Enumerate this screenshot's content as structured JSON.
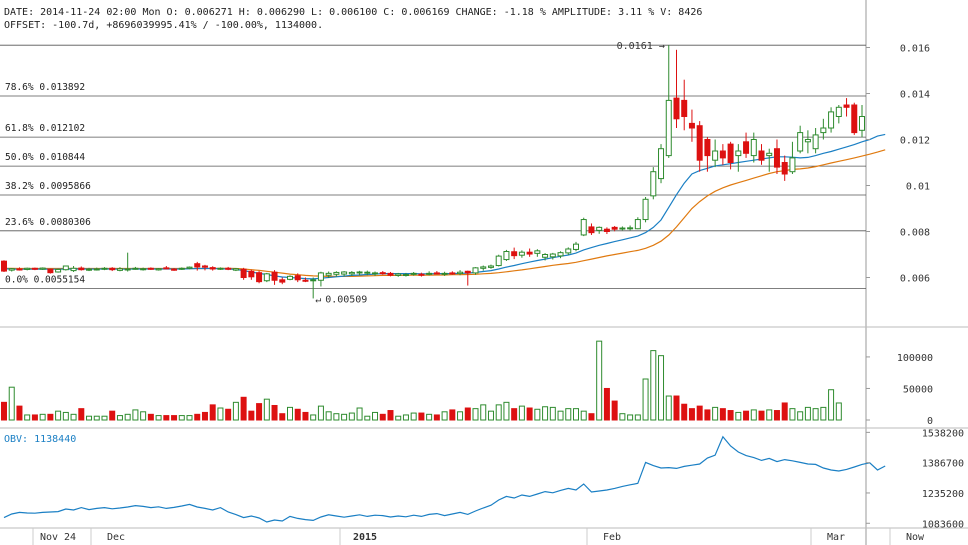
{
  "header": {
    "line1": "DATE: 2014-11-24 02:00 Mon   O: 0.006271   H: 0.006290   L: 0.006100   C: 0.006169   CHANGE: -1.18 %   AMPLITUDE: 3.11 %   V: 8426",
    "line2": "OFFSET: -100.7d, +8696039995.41% / -100.00%, 1134000."
  },
  "colors": {
    "up": "#2e8b2e",
    "down": "#dd1111",
    "ma_fast": "#1a7fc4",
    "ma_slow": "#e07a10",
    "obv": "#1a7fc4",
    "grid": "#555555"
  },
  "chart_data": [
    {
      "type": "candlestick",
      "title": "",
      "ylim": [
        0.0045,
        0.0165
      ],
      "y_ticks": [
        "0.016",
        "0.014",
        "0.012",
        "0.01",
        "0.008",
        "0.006"
      ],
      "fib_levels": [
        {
          "label": "78.6% 0.013892",
          "value": 0.013892
        },
        {
          "label": "61.8% 0.012102",
          "value": 0.012102
        },
        {
          "label": "50.0% 0.010844",
          "value": 0.010844
        },
        {
          "label": "38.2% 0.0095866",
          "value": 0.0095866
        },
        {
          "label": "23.6% 0.0080306",
          "value": 0.0080306
        },
        {
          "label": "0.0% 0.0055154",
          "value": 0.0055154
        }
      ],
      "top_line": 0.0161,
      "annotations": {
        "high": "0.0161",
        "low": "0.00509"
      },
      "x_labels": [
        "Nov 24",
        "Dec",
        "2015",
        "Feb",
        "Mar",
        "Now"
      ],
      "candles": [
        [
          0.00671,
          0.00675,
          0.00624,
          0.00628
        ],
        [
          0.00632,
          0.00641,
          0.00626,
          0.00638
        ],
        [
          0.00637,
          0.00644,
          0.0063,
          0.00633
        ],
        [
          0.00635,
          0.00643,
          0.00631,
          0.0064
        ],
        [
          0.0064,
          0.00643,
          0.00632,
          0.00636
        ],
        [
          0.00636,
          0.00644,
          0.00633,
          0.00641
        ],
        [
          0.00636,
          0.00638,
          0.00617,
          0.00621
        ],
        [
          0.00624,
          0.00638,
          0.00621,
          0.00635
        ],
        [
          0.00634,
          0.00652,
          0.0063,
          0.0065
        ],
        [
          0.0063,
          0.0065,
          0.00624,
          0.0064
        ],
        [
          0.00641,
          0.00648,
          0.0063,
          0.00634
        ],
        [
          0.00634,
          0.00642,
          0.00628,
          0.00636
        ],
        [
          0.00634,
          0.00643,
          0.0063,
          0.00637
        ],
        [
          0.00637,
          0.00645,
          0.00632,
          0.0064
        ],
        [
          0.0064,
          0.00645,
          0.00628,
          0.00634
        ],
        [
          0.00631,
          0.00645,
          0.00627,
          0.00638
        ],
        [
          0.00633,
          0.00708,
          0.00626,
          0.00637
        ],
        [
          0.00637,
          0.00646,
          0.00634,
          0.0064
        ],
        [
          0.00635,
          0.00643,
          0.0063,
          0.00638
        ],
        [
          0.0064,
          0.00644,
          0.00633,
          0.00636
        ],
        [
          0.00633,
          0.00641,
          0.0063,
          0.00638
        ],
        [
          0.00642,
          0.0065,
          0.00636,
          0.0064
        ],
        [
          0.00636,
          0.00641,
          0.00629,
          0.00634
        ],
        [
          0.00636,
          0.00644,
          0.00633,
          0.0064
        ],
        [
          0.0064,
          0.00648,
          0.00636,
          0.00645
        ],
        [
          0.0066,
          0.00668,
          0.0063,
          0.00646
        ],
        [
          0.0065,
          0.00655,
          0.00631,
          0.00645
        ],
        [
          0.00643,
          0.00649,
          0.0063,
          0.00637
        ],
        [
          0.00636,
          0.00644,
          0.00633,
          0.0064
        ],
        [
          0.0064,
          0.00646,
          0.00632,
          0.00637
        ],
        [
          0.00632,
          0.00641,
          0.00628,
          0.00638
        ],
        [
          0.00636,
          0.00642,
          0.0059,
          0.006
        ],
        [
          0.00627,
          0.00634,
          0.0059,
          0.00603
        ],
        [
          0.00621,
          0.00628,
          0.00575,
          0.00582
        ],
        [
          0.00586,
          0.0062,
          0.0058,
          0.00616
        ],
        [
          0.00623,
          0.00632,
          0.00568,
          0.00588
        ],
        [
          0.0059,
          0.006,
          0.00571,
          0.0058
        ],
        [
          0.00592,
          0.0061,
          0.00588,
          0.00605
        ],
        [
          0.00608,
          0.00618,
          0.0058,
          0.0059
        ],
        [
          0.00588,
          0.006,
          0.0058,
          0.00587
        ],
        [
          0.00586,
          0.006,
          0.00509,
          0.0059
        ],
        [
          0.00588,
          0.00625,
          0.00561,
          0.0062
        ],
        [
          0.0061,
          0.00626,
          0.00598,
          0.00618
        ],
        [
          0.00614,
          0.00627,
          0.00604,
          0.00622
        ],
        [
          0.00615,
          0.00628,
          0.00605,
          0.00624
        ],
        [
          0.00616,
          0.00628,
          0.00607,
          0.00622
        ],
        [
          0.00621,
          0.00629,
          0.0061,
          0.00624
        ],
        [
          0.0062,
          0.0063,
          0.0061,
          0.00623
        ],
        [
          0.00617,
          0.00626,
          0.00607,
          0.0062
        ],
        [
          0.00621,
          0.00628,
          0.00612,
          0.0062
        ],
        [
          0.00618,
          0.00624,
          0.00605,
          0.0061
        ],
        [
          0.00609,
          0.0062,
          0.00603,
          0.00615
        ],
        [
          0.00611,
          0.0062,
          0.00604,
          0.00613
        ],
        [
          0.00616,
          0.00624,
          0.00608,
          0.00618
        ],
        [
          0.00614,
          0.00621,
          0.00604,
          0.0061
        ],
        [
          0.00616,
          0.00627,
          0.00609,
          0.00618
        ],
        [
          0.0062,
          0.00628,
          0.00614,
          0.00617
        ],
        [
          0.00614,
          0.00625,
          0.00607,
          0.00618
        ],
        [
          0.0062,
          0.00627,
          0.00612,
          0.00618
        ],
        [
          0.00617,
          0.00632,
          0.0061,
          0.00623
        ],
        [
          0.00627,
          0.0063,
          0.00565,
          0.0062
        ],
        [
          0.0062,
          0.00645,
          0.00612,
          0.00642
        ],
        [
          0.0064,
          0.00652,
          0.0063,
          0.00646
        ],
        [
          0.00644,
          0.00656,
          0.00638,
          0.0065
        ],
        [
          0.00652,
          0.00699,
          0.00648,
          0.00693
        ],
        [
          0.00678,
          0.0072,
          0.00672,
          0.00713
        ],
        [
          0.00712,
          0.0073,
          0.0068,
          0.00695
        ],
        [
          0.00697,
          0.00718,
          0.00686,
          0.0071
        ],
        [
          0.0071,
          0.00726,
          0.0069,
          0.00702
        ],
        [
          0.00705,
          0.00723,
          0.0069,
          0.00716
        ],
        [
          0.00688,
          0.00706,
          0.00674,
          0.007
        ],
        [
          0.0069,
          0.00707,
          0.00678,
          0.00702
        ],
        [
          0.00694,
          0.00714,
          0.00684,
          0.00708
        ],
        [
          0.00707,
          0.00731,
          0.00698,
          0.00724
        ],
        [
          0.00722,
          0.00755,
          0.00714,
          0.00745
        ],
        [
          0.00785,
          0.0086,
          0.0078,
          0.00852
        ],
        [
          0.0082,
          0.00835,
          0.00785,
          0.00795
        ],
        [
          0.00805,
          0.00822,
          0.0079,
          0.00818
        ],
        [
          0.0081,
          0.00818,
          0.00789,
          0.008
        ],
        [
          0.00818,
          0.00824,
          0.00801,
          0.0081
        ],
        [
          0.00813,
          0.00822,
          0.00805,
          0.00815
        ],
        [
          0.00814,
          0.00826,
          0.00805,
          0.00816
        ],
        [
          0.00812,
          0.00862,
          0.0081,
          0.00852
        ],
        [
          0.00852,
          0.0095,
          0.0084,
          0.0094
        ],
        [
          0.00955,
          0.0108,
          0.0094,
          0.0106
        ],
        [
          0.0103,
          0.0118,
          0.0101,
          0.0116
        ],
        [
          0.0113,
          0.0161,
          0.0112,
          0.0137
        ],
        [
          0.0138,
          0.0159,
          0.0125,
          0.0129
        ],
        [
          0.0137,
          0.0146,
          0.0124,
          0.013
        ],
        [
          0.0127,
          0.0133,
          0.0119,
          0.0125
        ],
        [
          0.0126,
          0.0128,
          0.0106,
          0.0111
        ],
        [
          0.012,
          0.0121,
          0.0106,
          0.0113
        ],
        [
          0.0111,
          0.012,
          0.0108,
          0.0115
        ],
        [
          0.0115,
          0.0118,
          0.0109,
          0.0112
        ],
        [
          0.0118,
          0.0119,
          0.0107,
          0.011
        ],
        [
          0.0113,
          0.0118,
          0.0106,
          0.0115
        ],
        [
          0.0119,
          0.0123,
          0.0112,
          0.0114
        ],
        [
          0.0113,
          0.0123,
          0.011,
          0.012
        ],
        [
          0.0115,
          0.0118,
          0.0109,
          0.0111
        ],
        [
          0.0113,
          0.0116,
          0.0106,
          0.0114
        ],
        [
          0.0116,
          0.012,
          0.0105,
          0.0108
        ],
        [
          0.011,
          0.0113,
          0.0102,
          0.0105
        ],
        [
          0.0106,
          0.0119,
          0.0105,
          0.0112
        ],
        [
          0.0115,
          0.0126,
          0.0114,
          0.0123
        ],
        [
          0.0119,
          0.0124,
          0.0114,
          0.012
        ],
        [
          0.0116,
          0.0125,
          0.0114,
          0.0122
        ],
        [
          0.0123,
          0.0129,
          0.012,
          0.0125
        ],
        [
          0.0125,
          0.0134,
          0.0123,
          0.0132
        ],
        [
          0.013,
          0.0135,
          0.0127,
          0.0134
        ],
        [
          0.0135,
          0.0138,
          0.013,
          0.0134
        ],
        [
          0.0135,
          0.0136,
          0.0122,
          0.0123
        ],
        [
          0.0124,
          0.0135,
          0.0121,
          0.013
        ]
      ],
      "ma_fast": [
        0.00638,
        0.00637,
        0.00636,
        0.00636,
        0.00636,
        0.00637,
        0.00636,
        0.00636,
        0.00637,
        0.00637,
        0.00637,
        0.00637,
        0.00637,
        0.00637,
        0.00637,
        0.00636,
        0.00637,
        0.00637,
        0.00637,
        0.00637,
        0.00637,
        0.00637,
        0.00637,
        0.00637,
        0.00638,
        0.00639,
        0.00639,
        0.00639,
        0.00638,
        0.00637,
        0.00635,
        0.0063,
        0.00624,
        0.00618,
        0.00613,
        0.00607,
        0.00602,
        0.006,
        0.00598,
        0.00595,
        0.00594,
        0.00597,
        0.006,
        0.00603,
        0.00606,
        0.00609,
        0.00611,
        0.00613,
        0.00615,
        0.00617,
        0.00617,
        0.00617,
        0.00617,
        0.00617,
        0.00616,
        0.00616,
        0.00617,
        0.00617,
        0.00617,
        0.00618,
        0.00619,
        0.00622,
        0.00626,
        0.0063,
        0.00637,
        0.00645,
        0.00652,
        0.0066,
        0.00667,
        0.00674,
        0.0068,
        0.00686,
        0.00692,
        0.00698,
        0.00706,
        0.0072,
        0.0073,
        0.0074,
        0.00748,
        0.00756,
        0.00764,
        0.00772,
        0.0078,
        0.00795,
        0.00818,
        0.0085,
        0.00905,
        0.0096,
        0.0101,
        0.0105,
        0.01065,
        0.01075,
        0.01085,
        0.0109,
        0.01095,
        0.011,
        0.01105,
        0.0111,
        0.01115,
        0.0112,
        0.01125,
        0.01125,
        0.01123,
        0.0112,
        0.01122,
        0.0113,
        0.0114,
        0.01148,
        0.01158,
        0.01168,
        0.01178,
        0.0119,
        0.012,
        0.01215,
        0.01222
      ],
      "ma_slow": [
        0.0064,
        0.0064,
        0.00639,
        0.00639,
        0.00639,
        0.00639,
        0.00639,
        0.00639,
        0.00639,
        0.00639,
        0.00639,
        0.00639,
        0.00639,
        0.00639,
        0.00639,
        0.00639,
        0.00639,
        0.00639,
        0.00639,
        0.00639,
        0.00639,
        0.00639,
        0.00639,
        0.00639,
        0.00639,
        0.00639,
        0.00639,
        0.0064,
        0.0064,
        0.0064,
        0.00639,
        0.00637,
        0.00634,
        0.00631,
        0.00627,
        0.00623,
        0.00619,
        0.00615,
        0.00612,
        0.00609,
        0.00607,
        0.00606,
        0.00605,
        0.00605,
        0.00605,
        0.00605,
        0.00606,
        0.00607,
        0.00608,
        0.00609,
        0.00609,
        0.00609,
        0.0061,
        0.0061,
        0.0061,
        0.0061,
        0.00611,
        0.00611,
        0.00612,
        0.00612,
        0.00613,
        0.00614,
        0.00616,
        0.00618,
        0.00621,
        0.00625,
        0.00629,
        0.00633,
        0.00638,
        0.00643,
        0.00648,
        0.00653,
        0.00657,
        0.00661,
        0.00666,
        0.00673,
        0.0068,
        0.00687,
        0.00694,
        0.007,
        0.00706,
        0.00712,
        0.00718,
        0.00727,
        0.0074,
        0.00758,
        0.00785,
        0.0082,
        0.0086,
        0.009,
        0.0093,
        0.00955,
        0.00975,
        0.0099,
        0.01002,
        0.01012,
        0.01022,
        0.01032,
        0.01042,
        0.01052,
        0.0106,
        0.01065,
        0.0107,
        0.01072,
        0.01076,
        0.01082,
        0.0109,
        0.01098,
        0.01105,
        0.01112,
        0.0112,
        0.01128,
        0.01136,
        0.01145,
        0.01155
      ]
    },
    {
      "type": "bar",
      "title": "",
      "ylim": [
        0,
        130000
      ],
      "y_ticks": [
        "100000",
        "50000",
        "0"
      ],
      "values": [
        28000,
        52000,
        22000,
        8000,
        8000,
        9000,
        9000,
        14000,
        12000,
        9000,
        18000,
        6000,
        6000,
        6000,
        14000,
        7000,
        9000,
        16000,
        13000,
        9000,
        7000,
        7000,
        7000,
        7000,
        7000,
        9000,
        12000,
        24000,
        19000,
        17000,
        28000,
        36000,
        14000,
        26000,
        33000,
        23000,
        10000,
        20000,
        17000,
        12000,
        8000,
        22000,
        13000,
        10000,
        9000,
        11000,
        19000,
        6000,
        12000,
        9000,
        15000,
        6000,
        8000,
        11000,
        11000,
        9000,
        8000,
        13000,
        16000,
        13000,
        19000,
        18000,
        24000,
        14000,
        24000,
        28000,
        18000,
        22000,
        19000,
        17000,
        21000,
        20000,
        14000,
        18000,
        18000,
        14000,
        10000,
        125000,
        50000,
        30000,
        10000,
        8000,
        8000,
        65000,
        110000,
        102000,
        38000,
        38000,
        25000,
        18000,
        22000,
        16000,
        20000,
        18000,
        15000,
        12000,
        14000,
        16000,
        14000,
        16000,
        15000,
        27000,
        18000,
        13000,
        20000,
        18000,
        20000,
        48000,
        27000
      ],
      "colors_by_candle": true
    },
    {
      "type": "line",
      "title": "",
      "label": "OBV: 1138440",
      "ylim": [
        1060000,
        1560000
      ],
      "y_ticks": [
        "1538200",
        "1386700",
        "1235200",
        "1083600"
      ],
      "values": [
        1112000,
        1130000,
        1138000,
        1135000,
        1134000,
        1138000,
        1140000,
        1142000,
        1155000,
        1150000,
        1162000,
        1152000,
        1158000,
        1162000,
        1156000,
        1160000,
        1165000,
        1172000,
        1168000,
        1162000,
        1166000,
        1158000,
        1163000,
        1170000,
        1178000,
        1165000,
        1158000,
        1150000,
        1162000,
        1140000,
        1127000,
        1112000,
        1120000,
        1110000,
        1090000,
        1100000,
        1095000,
        1118000,
        1108000,
        1102000,
        1098000,
        1115000,
        1126000,
        1120000,
        1114000,
        1120000,
        1126000,
        1118000,
        1124000,
        1122000,
        1115000,
        1120000,
        1116000,
        1124000,
        1118000,
        1128000,
        1132000,
        1122000,
        1130000,
        1138000,
        1128000,
        1145000,
        1160000,
        1174000,
        1200000,
        1218000,
        1210000,
        1225000,
        1218000,
        1230000,
        1242000,
        1236000,
        1248000,
        1258000,
        1250000,
        1280000,
        1240000,
        1245000,
        1250000,
        1258000,
        1268000,
        1276000,
        1283000,
        1388000,
        1372000,
        1360000,
        1362000,
        1358000,
        1368000,
        1374000,
        1380000,
        1410000,
        1424000,
        1516000,
        1470000,
        1440000,
        1422000,
        1412000,
        1398000,
        1408000,
        1392000,
        1402000,
        1396000,
        1388000,
        1380000,
        1378000,
        1360000,
        1350000,
        1345000,
        1353000,
        1365000,
        1378000,
        1386000,
        1350000,
        1370000
      ]
    }
  ]
}
